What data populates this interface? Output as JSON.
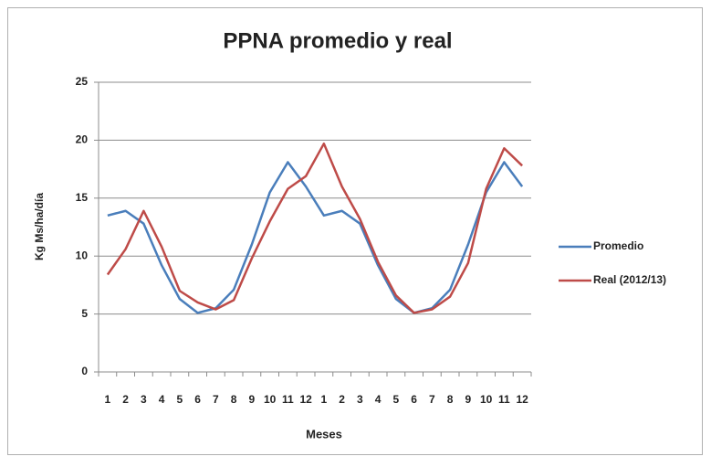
{
  "chart_data": {
    "type": "line",
    "title": "PPNA promedio y real",
    "x_label": "Meses",
    "y_label": "Kg Ms/ha/día",
    "categories": [
      "1",
      "2",
      "3",
      "4",
      "5",
      "6",
      "7",
      "8",
      "9",
      "10",
      "11",
      "12",
      "1",
      "2",
      "3",
      "4",
      "5",
      "6",
      "7",
      "8",
      "9",
      "10",
      "11",
      "12"
    ],
    "series": [
      {
        "name": "Promedio",
        "color": "#4a7ebb",
        "values": [
          13.5,
          13.9,
          12.8,
          9.2,
          6.3,
          5.1,
          5.5,
          7.1,
          11,
          15.5,
          18.1,
          16,
          13.5,
          13.9,
          12.8,
          9.2,
          6.3,
          5.1,
          5.5,
          7.1,
          11,
          15.5,
          18.1,
          16
        ]
      },
      {
        "name": "Real (2012/13)",
        "color": "#be4b48",
        "values": [
          8.4,
          10.6,
          13.9,
          10.8,
          7.0,
          6.0,
          5.4,
          6.2,
          9.8,
          13,
          15.8,
          16.9,
          19.7,
          16,
          13.2,
          9.5,
          6.6,
          5.1,
          5.4,
          6.5,
          9.4,
          15.8,
          19.3,
          17.8
        ]
      }
    ],
    "ylim": [
      0,
      25
    ],
    "yticks": [
      0,
      5,
      10,
      15,
      20,
      25
    ],
    "grid": true,
    "legend": "right"
  }
}
